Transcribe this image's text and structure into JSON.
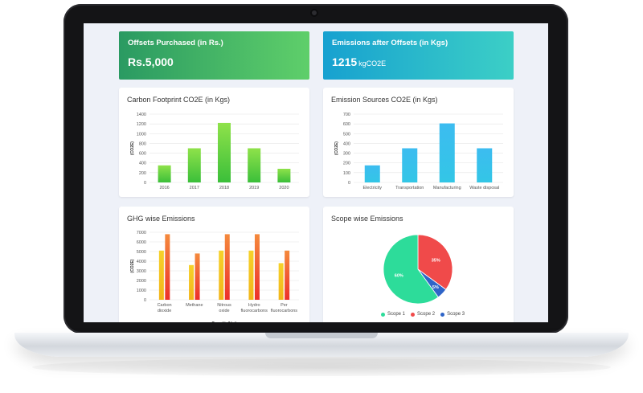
{
  "kpi": {
    "offsets": {
      "title": "Offsets Purchased (in Rs.)",
      "value": "Rs.5,000"
    },
    "emissions": {
      "title": "Emissions after Offsets (in Kgs)",
      "value": "1215",
      "unit": "kgCO2E"
    }
  },
  "colors": {
    "green_bar": "#4fcf3f",
    "blue_bar": "#3ab9ee",
    "yellow_bar": "#f2c21a",
    "red_bar": "#f0512e"
  },
  "chart_data": [
    {
      "type": "bar",
      "title": "Carbon Footprint CO2E (in Kgs)",
      "ylabel": "(CO2E)",
      "categories": [
        "2016",
        "2017",
        "2018",
        "2019",
        "2020"
      ],
      "values": [
        350,
        700,
        1220,
        700,
        280
      ],
      "ylim": [
        0,
        1400
      ],
      "yticks": [
        "0",
        "200",
        "400",
        "600",
        "800",
        "1000",
        "1200",
        "1400"
      ],
      "grid": true
    },
    {
      "type": "bar",
      "title": "Emission Sources CO2E (in Kgs)",
      "ylabel": "(CO2E)",
      "categories": [
        "Electricity",
        "Transportation",
        "Manufacturing",
        "Waste disposal"
      ],
      "values": [
        175,
        350,
        605,
        350
      ],
      "ylim": [
        0,
        700
      ],
      "yticks": [
        "0",
        "100",
        "200",
        "300",
        "400",
        "500",
        "600",
        "700"
      ],
      "grid": true
    },
    {
      "type": "bar",
      "title": "GHG wise Emissions",
      "ylabel": "(CO2E)",
      "xlabel": "Quantity/Unit",
      "categories": [
        [
          "Carbon",
          "dioxide"
        ],
        [
          "Methane"
        ],
        [
          "Nitrous",
          "oxide"
        ],
        [
          "Hydro",
          "fluorocarbons"
        ],
        [
          "Per",
          "fluorocarbons"
        ]
      ],
      "series": [
        {
          "values": [
            5100,
            3600,
            5100,
            5100,
            3800
          ]
        },
        {
          "values": [
            6800,
            4800,
            6800,
            6800,
            5100
          ]
        }
      ],
      "ylim": [
        0,
        7000
      ],
      "yticks": [
        "0",
        "1000",
        "2000",
        "3000",
        "4000",
        "5000",
        "6000",
        "7000"
      ],
      "grid": true
    },
    {
      "type": "pie",
      "title": "Scope wise Emissions",
      "slices": [
        {
          "name": "Scope 1",
          "value": 60,
          "label": "60%",
          "color": "#2ddc9a"
        },
        {
          "name": "Scope 2",
          "value": 35,
          "label": "35%",
          "color": "#f04a4a"
        },
        {
          "name": "Scope 3",
          "value": 5,
          "label": "5%",
          "color": "#2e64c8"
        }
      ],
      "legend": "bottom"
    }
  ]
}
